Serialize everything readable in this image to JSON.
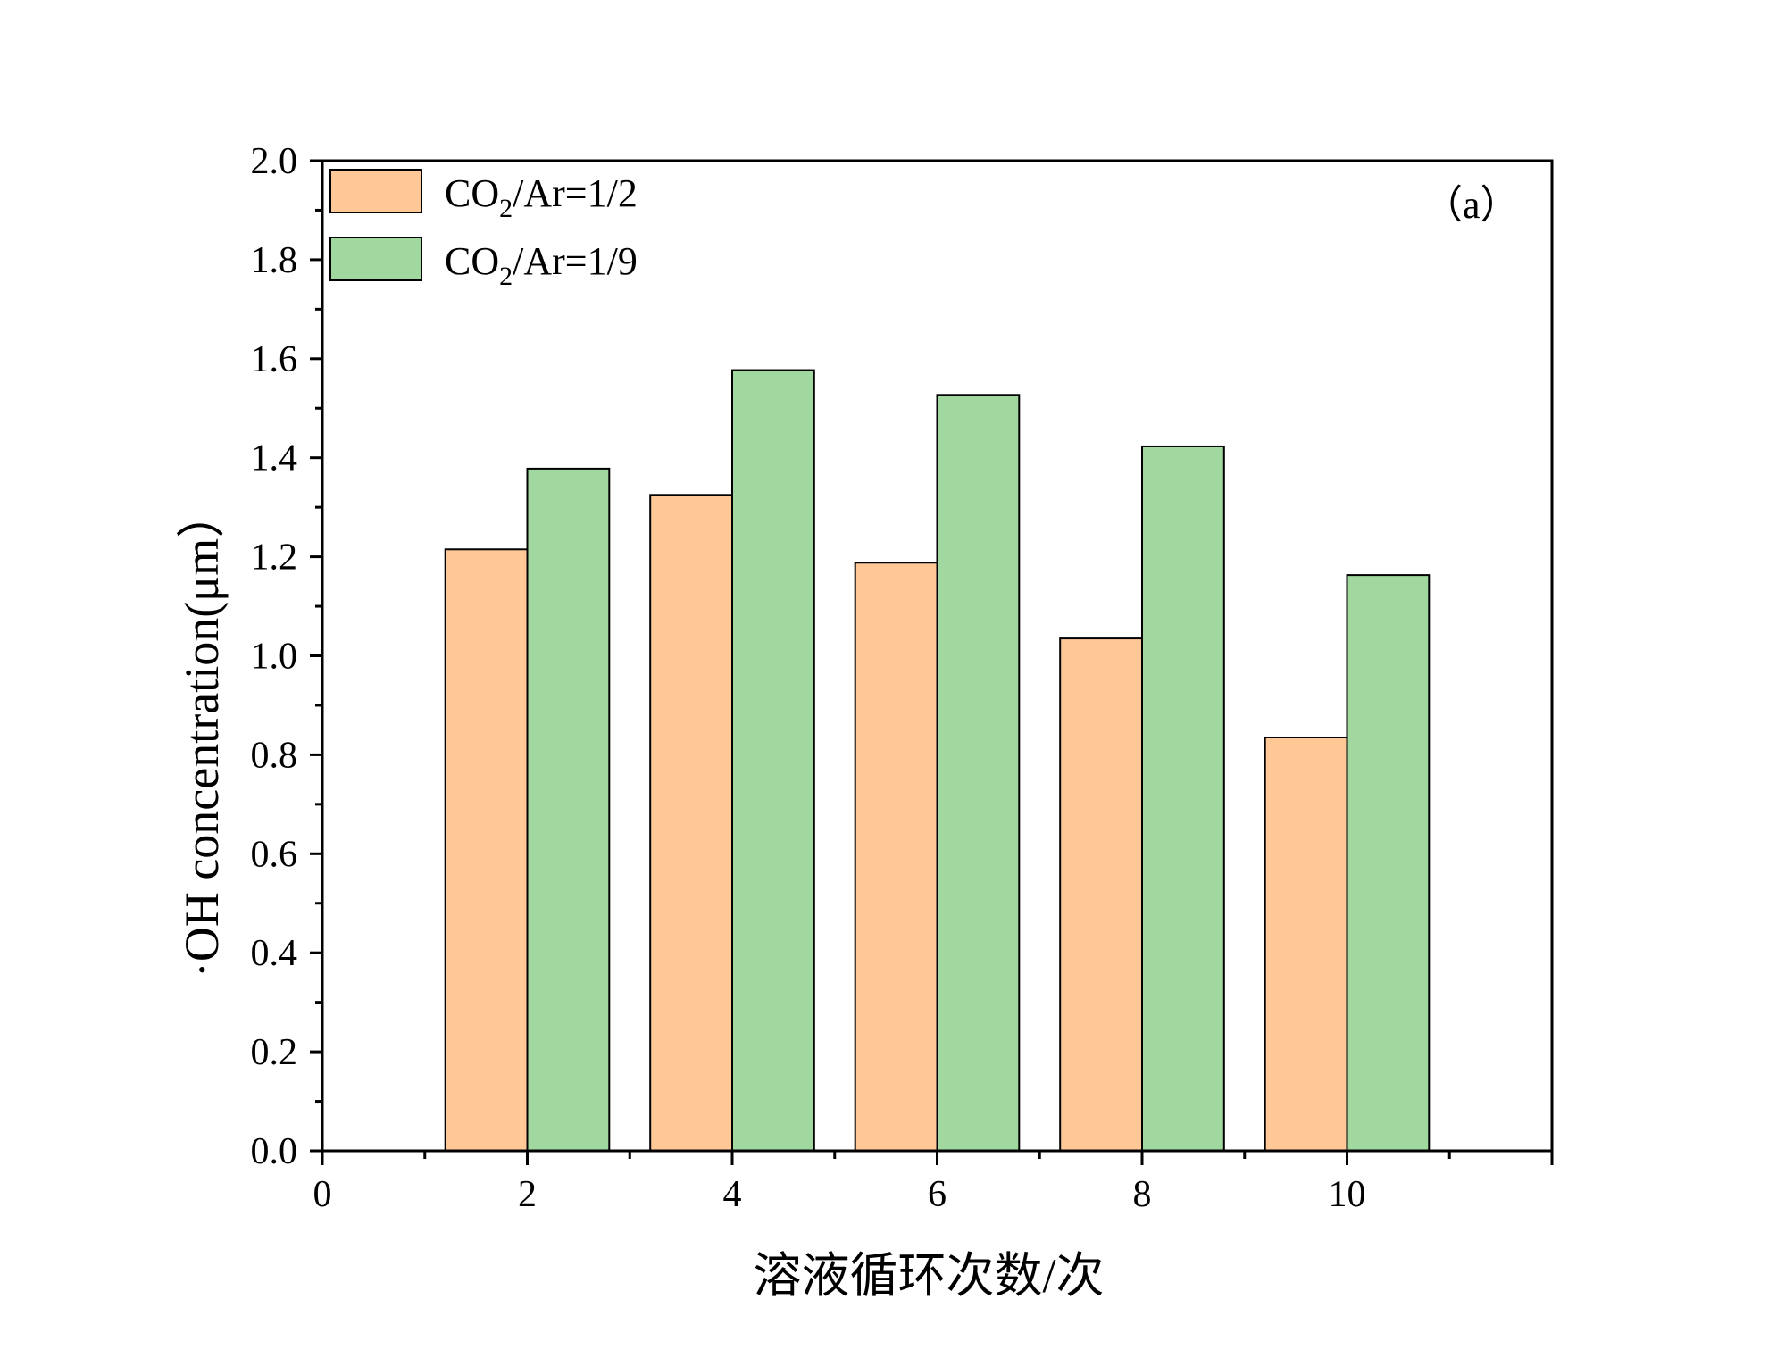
{
  "chart_data": {
    "type": "bar",
    "panel_label": "（a）",
    "xlabel": "溶液循环次数/次",
    "ylabel": "·OH concentration(μm）",
    "x": [
      2,
      4,
      6,
      8,
      10
    ],
    "xlim": [
      0,
      12
    ],
    "ylim": [
      0,
      2.0
    ],
    "xticks": [
      0,
      2,
      4,
      6,
      8,
      10
    ],
    "yticks": [
      0.0,
      0.2,
      0.4,
      0.6,
      0.8,
      1.0,
      1.2,
      1.4,
      1.6,
      1.8,
      2.0
    ],
    "ytick_labels": [
      "0.0",
      "0.2",
      "0.4",
      "0.6",
      "0.8",
      "1.0",
      "1.2",
      "1.4",
      "1.6",
      "1.8",
      "2.0"
    ],
    "bar_width": 0.8,
    "legend_position": "top-left",
    "grid": false,
    "series": [
      {
        "name": "CO2/Ar=1/2",
        "legend_main": "CO",
        "legend_sub": "2",
        "legend_rest": "/Ar=1/2",
        "color": "#ffc896",
        "values": [
          1.215,
          1.325,
          1.188,
          1.035,
          0.835
        ]
      },
      {
        "name": "CO2/Ar=1/9",
        "legend_main": "CO",
        "legend_sub": "2",
        "legend_rest": "/Ar=1/9",
        "color": "#a0d8a0",
        "values": [
          1.378,
          1.577,
          1.527,
          1.423,
          1.163
        ]
      }
    ]
  }
}
